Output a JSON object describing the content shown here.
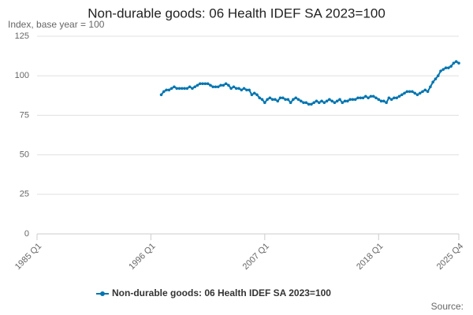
{
  "chart_data": {
    "type": "line",
    "title": "Non-durable goods: 06 Health IDEF SA 2023=100",
    "y_label": "Index, base year = 100",
    "source": "Source:",
    "categories": [
      "1985 Q1",
      null,
      null,
      null,
      null,
      null,
      null,
      null,
      null,
      null,
      null,
      null,
      null,
      null,
      null,
      null,
      null,
      null,
      null,
      null,
      null,
      null,
      null,
      null,
      null,
      null,
      null,
      null,
      null,
      null,
      null,
      null,
      null,
      null,
      null,
      null,
      null,
      null,
      null,
      null,
      null,
      null,
      null,
      null,
      "1996 Q1",
      null,
      null,
      null,
      null,
      null,
      null,
      null,
      null,
      null,
      null,
      null,
      null,
      null,
      null,
      null,
      null,
      null,
      null,
      null,
      null,
      null,
      null,
      null,
      null,
      null,
      null,
      null,
      null,
      null,
      null,
      null,
      null,
      null,
      null,
      null,
      null,
      null,
      null,
      null,
      null,
      null,
      null,
      null,
      "2007 Q1",
      null,
      null,
      null,
      null,
      null,
      null,
      null,
      null,
      null,
      null,
      null,
      null,
      null,
      null,
      null,
      null,
      null,
      null,
      null,
      null,
      null,
      null,
      null,
      null,
      null,
      null,
      null,
      null,
      null,
      null,
      null,
      null,
      null,
      null,
      null,
      null,
      null,
      null,
      null,
      null,
      null,
      null,
      null,
      "2018 Q1",
      null,
      null,
      null,
      null,
      null,
      null,
      null,
      null,
      null,
      null,
      null,
      null,
      null,
      null,
      null,
      null,
      null,
      null,
      null,
      null,
      null,
      null,
      null,
      null,
      null,
      null,
      null,
      null,
      null,
      null,
      "2025 Q4"
    ],
    "series": [
      {
        "name": "Non-durable goods: 06 Health IDEF SA 2023=100",
        "color": "#0075b0",
        "values": [
          null,
          null,
          null,
          null,
          null,
          null,
          null,
          null,
          null,
          null,
          null,
          null,
          null,
          null,
          null,
          null,
          null,
          null,
          null,
          null,
          null,
          null,
          null,
          null,
          null,
          null,
          null,
          null,
          null,
          null,
          null,
          null,
          null,
          null,
          null,
          null,
          null,
          null,
          null,
          null,
          null,
          null,
          null,
          null,
          null,
          null,
          null,
          null,
          88,
          90,
          91,
          91,
          92,
          93,
          92,
          92,
          92,
          92,
          92,
          93,
          92,
          93,
          94,
          95,
          95,
          95,
          95,
          94,
          93,
          93,
          93,
          94,
          94,
          95,
          94,
          92,
          93,
          92,
          92,
          91,
          92,
          91,
          91,
          88,
          89,
          88,
          86,
          85,
          83,
          85,
          86,
          85,
          85,
          84,
          86,
          86,
          85,
          85,
          83,
          85,
          86,
          85,
          84,
          83,
          83,
          82,
          82,
          83,
          84,
          83,
          84,
          83,
          84,
          85,
          84,
          83,
          84,
          85,
          83,
          84,
          84,
          85,
          85,
          85,
          86,
          86,
          86,
          87,
          86,
          87,
          87,
          86,
          85,
          84,
          84,
          83,
          86,
          85,
          86,
          86,
          87,
          88,
          89,
          90,
          90,
          90,
          89,
          88,
          89,
          90,
          91,
          90,
          93,
          96,
          98,
          100,
          103,
          104,
          105,
          105,
          106,
          108,
          109,
          108
        ]
      }
    ],
    "ylim": [
      0,
      125
    ],
    "yticks": [
      0,
      25,
      50,
      75,
      100,
      125
    ],
    "grid": true
  }
}
